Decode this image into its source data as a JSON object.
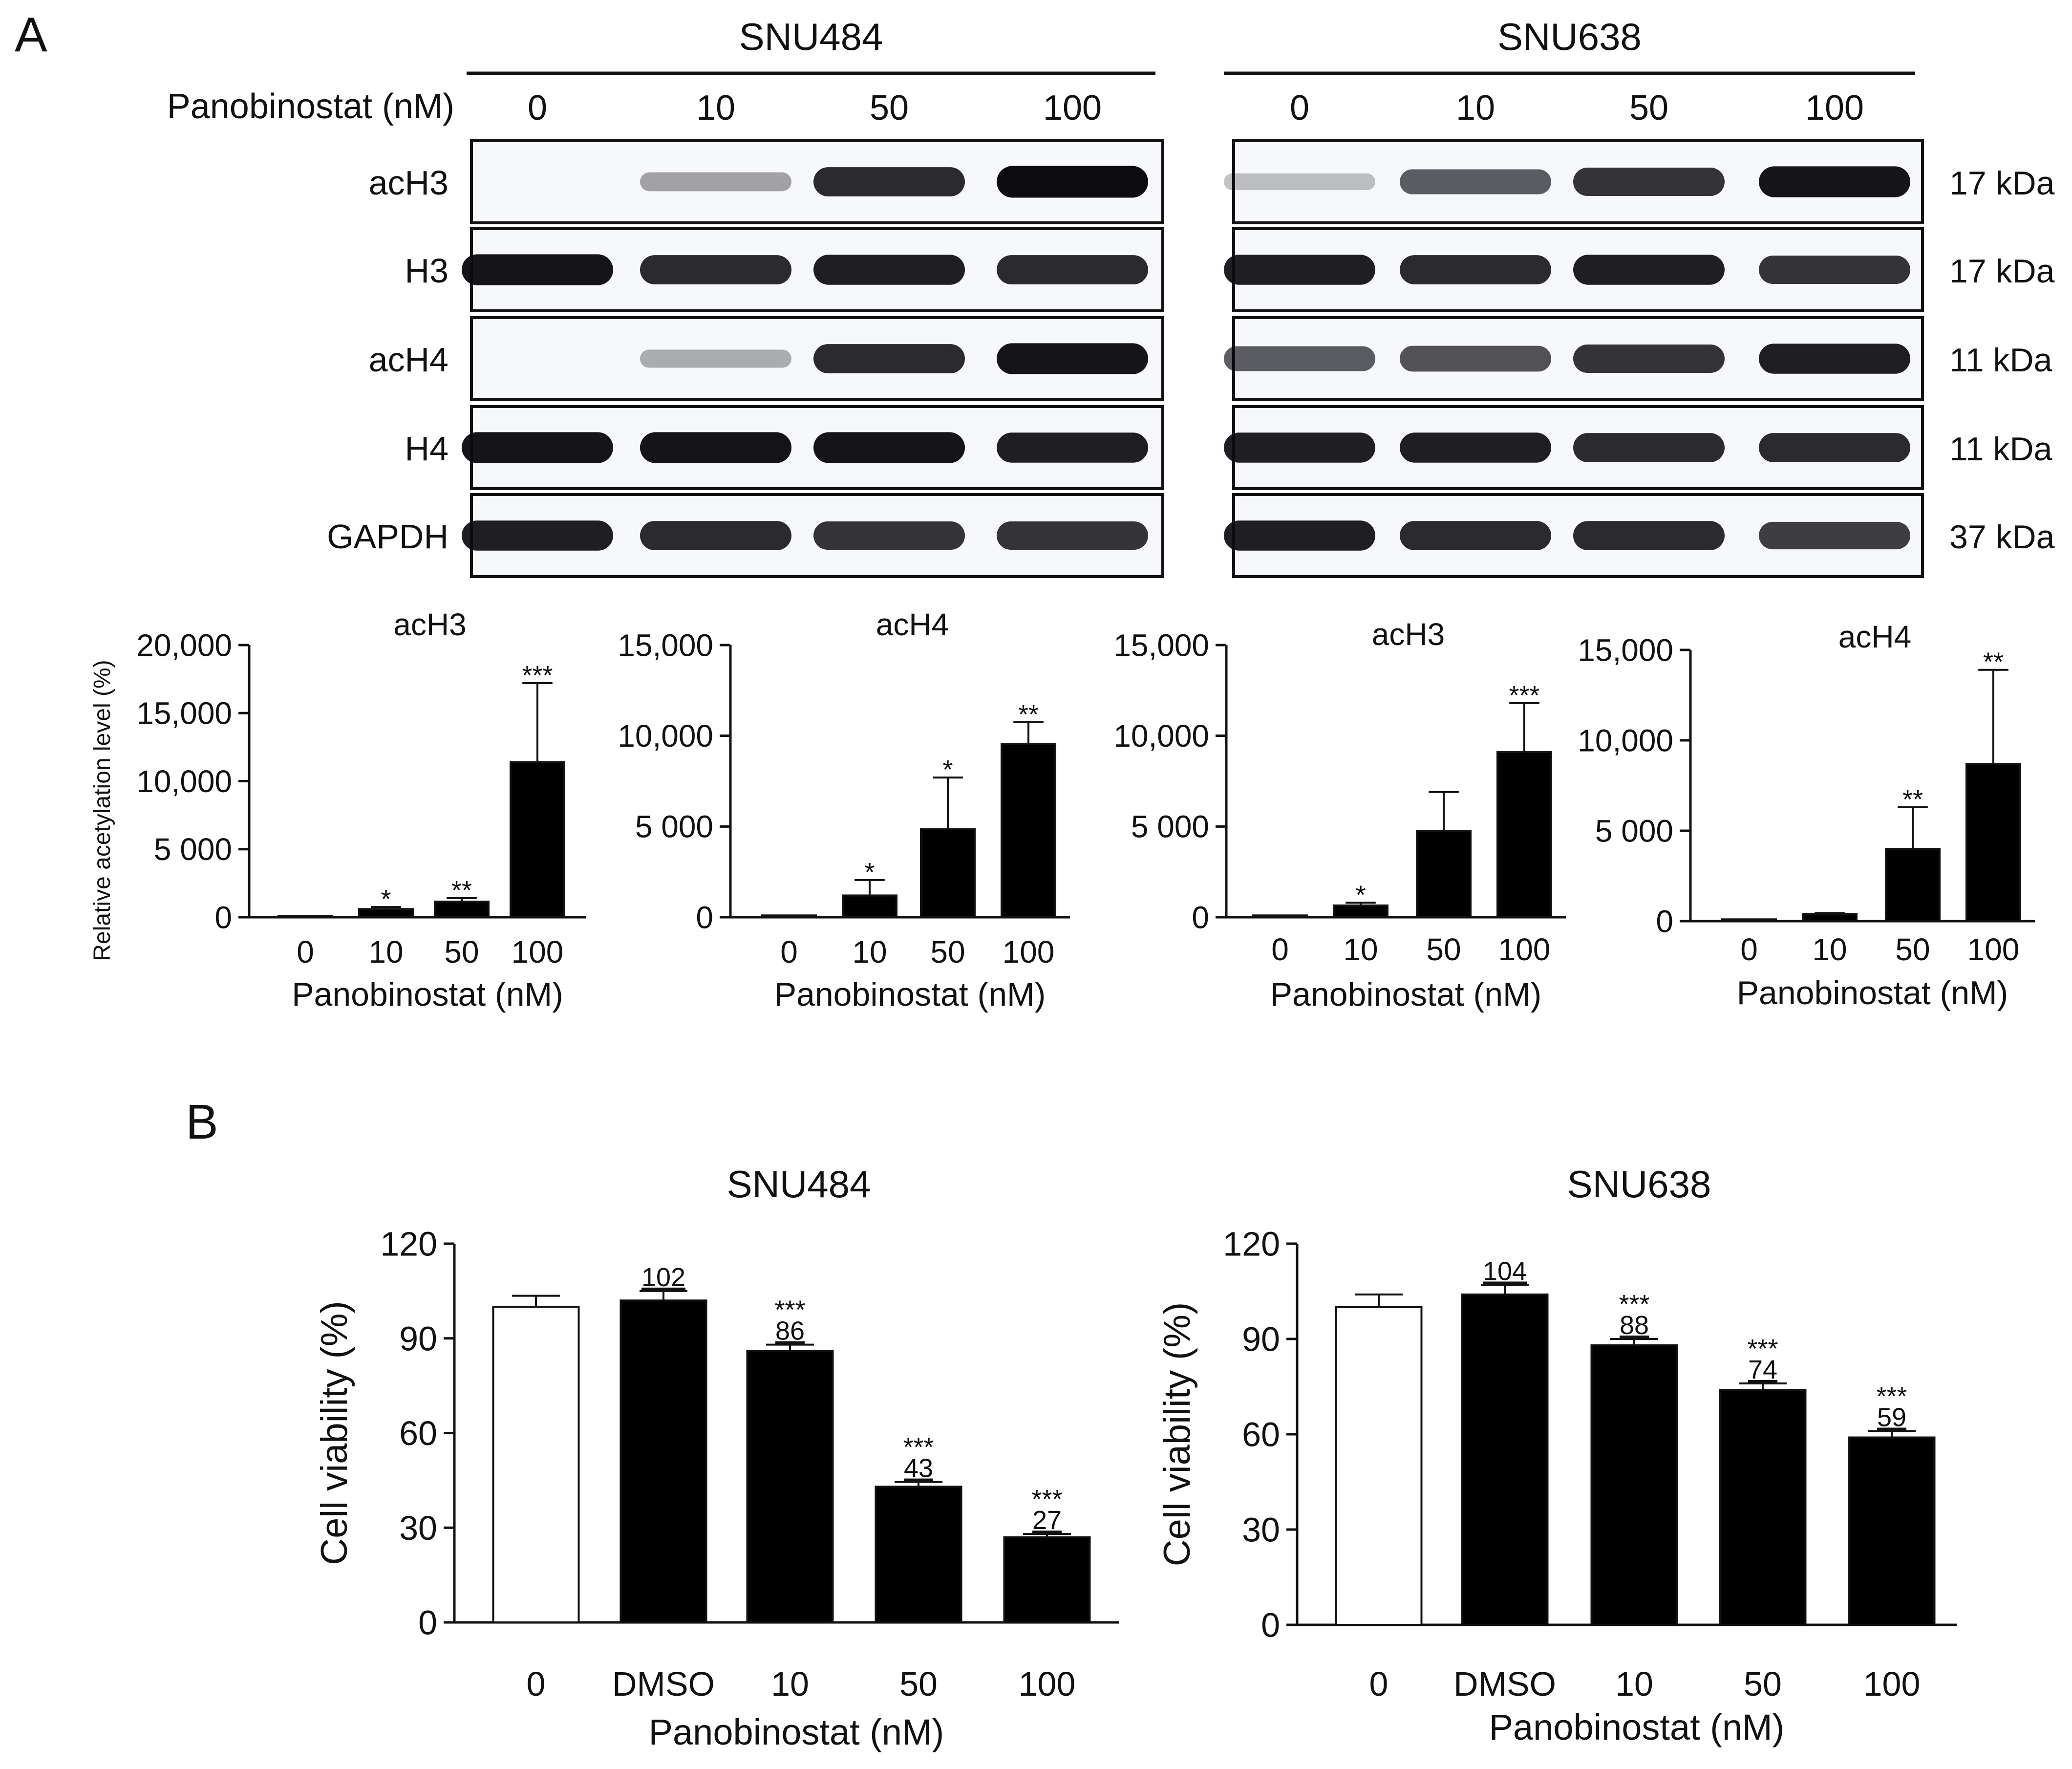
{
  "panels": {
    "a": "A",
    "b": "B"
  },
  "colors": {
    "ink": "#111111",
    "bar": "#000000",
    "open_bar": "#ffffff"
  },
  "western": {
    "row_label": "Panobinostat (nM)",
    "cell_lines": [
      "SNU484",
      "SNU638"
    ],
    "doses": [
      "0",
      "10",
      "50",
      "100"
    ],
    "proteins": [
      "acH3",
      "H3",
      "acH4",
      "H4",
      "GAPDH"
    ],
    "sizes": [
      "17 kDa",
      "17 kDa",
      "11 kDa",
      "11 kDa",
      "37 kDa"
    ],
    "bands": [
      {
        "SNU484": [
          0.0,
          0.25,
          0.85,
          1.0
        ],
        "SNU638": [
          0.12,
          0.6,
          0.8,
          0.95
        ]
      },
      {
        "SNU484": [
          0.95,
          0.85,
          0.9,
          0.85
        ],
        "SNU638": [
          0.9,
          0.85,
          0.9,
          0.8
        ]
      },
      {
        "SNU484": [
          0.0,
          0.2,
          0.85,
          0.95
        ],
        "SNU638": [
          0.6,
          0.65,
          0.8,
          0.9
        ]
      },
      {
        "SNU484": [
          0.95,
          0.95,
          0.95,
          0.9
        ],
        "SNU638": [
          0.9,
          0.9,
          0.85,
          0.85
        ]
      },
      {
        "SNU484": [
          0.9,
          0.85,
          0.8,
          0.8
        ],
        "SNU638": [
          0.9,
          0.85,
          0.85,
          0.75
        ]
      }
    ]
  },
  "chart_data": [
    {
      "type": "bar",
      "title": "acH3",
      "xlabel": "Panobinostat (nM)",
      "ylabel": "Relative acetylation level (%)",
      "categories": [
        "0",
        "10",
        "50",
        "100"
      ],
      "values": [
        100,
        600,
        1150,
        11400
      ],
      "errors": [
        0,
        150,
        250,
        5800
      ],
      "significance": [
        "",
        "*",
        "**",
        "***"
      ],
      "ylim": [
        0,
        20000
      ],
      "yticks": [
        0,
        5000,
        10000,
        15000,
        20000
      ],
      "ytick_labels": [
        "0",
        "5 000",
        "10,000",
        "15,000",
        "20,000"
      ]
    },
    {
      "type": "bar",
      "title": "acH4",
      "xlabel": "Panobinostat (nM)",
      "ylabel": "",
      "categories": [
        "0",
        "10",
        "50",
        "100"
      ],
      "values": [
        100,
        1200,
        4850,
        9550
      ],
      "errors": [
        0,
        850,
        2850,
        1200
      ],
      "significance": [
        "",
        "*",
        "*",
        "**"
      ],
      "ylim": [
        0,
        15000
      ],
      "yticks": [
        0,
        5000,
        10000,
        15000
      ],
      "ytick_labels": [
        "0",
        "5 000",
        "10,000",
        "15,000"
      ]
    },
    {
      "type": "bar",
      "title": "acH3",
      "xlabel": "Panobinostat (nM)",
      "ylabel": "",
      "categories": [
        "0",
        "10",
        "50",
        "100"
      ],
      "values": [
        100,
        650,
        4750,
        9100
      ],
      "errors": [
        0,
        150,
        2150,
        2700
      ],
      "significance": [
        "",
        "*",
        "",
        "***"
      ],
      "ylim": [
        0,
        15000
      ],
      "yticks": [
        0,
        5000,
        10000,
        15000
      ],
      "ytick_labels": [
        "0",
        "5 000",
        "10,000",
        "15,000"
      ]
    },
    {
      "type": "bar",
      "title": "acH4",
      "xlabel": "Panobinostat (nM)",
      "ylabel": "",
      "categories": [
        "0",
        "10",
        "50",
        "100"
      ],
      "values": [
        100,
        400,
        4000,
        8700
      ],
      "errors": [
        0,
        50,
        2300,
        5200
      ],
      "significance": [
        "",
        "",
        "**",
        "**"
      ],
      "ylim": [
        0,
        15000
      ],
      "yticks": [
        0,
        5000,
        10000,
        15000
      ],
      "ytick_labels": [
        "0",
        "5 000",
        "10,000",
        "15,000"
      ]
    },
    {
      "type": "bar",
      "title": "SNU484",
      "xlabel": "Panobinostat (nM)",
      "ylabel": "Cell viability (%)",
      "categories": [
        "0",
        "DMSO",
        "10",
        "50",
        "100"
      ],
      "values": [
        100,
        102,
        86,
        43,
        27
      ],
      "value_labels": [
        "",
        "102",
        "86",
        "43",
        "27"
      ],
      "errors": [
        3.5,
        3,
        2,
        1.5,
        1
      ],
      "significance": [
        "",
        "",
        "***",
        "***",
        "***"
      ],
      "open": [
        true,
        false,
        false,
        false,
        false
      ],
      "ylim": [
        0,
        120
      ],
      "yticks": [
        0,
        30,
        60,
        90,
        120
      ],
      "ytick_labels": [
        "0",
        "30",
        "60",
        "90",
        "120"
      ]
    },
    {
      "type": "bar",
      "title": "SNU638",
      "xlabel": "Panobinostat (nM)",
      "ylabel": "Cell viability (%)",
      "categories": [
        "0",
        "DMSO",
        "10",
        "50",
        "100"
      ],
      "values": [
        100,
        104,
        88,
        74,
        59
      ],
      "value_labels": [
        "",
        "104",
        "88",
        "74",
        "59"
      ],
      "errors": [
        4,
        3,
        2,
        2,
        2
      ],
      "significance": [
        "",
        "",
        "***",
        "***",
        "***"
      ],
      "open": [
        true,
        false,
        false,
        false,
        false
      ],
      "ylim": [
        0,
        120
      ],
      "yticks": [
        0,
        30,
        60,
        90,
        120
      ],
      "ytick_labels": [
        "0",
        "30",
        "60",
        "90",
        "120"
      ]
    }
  ]
}
